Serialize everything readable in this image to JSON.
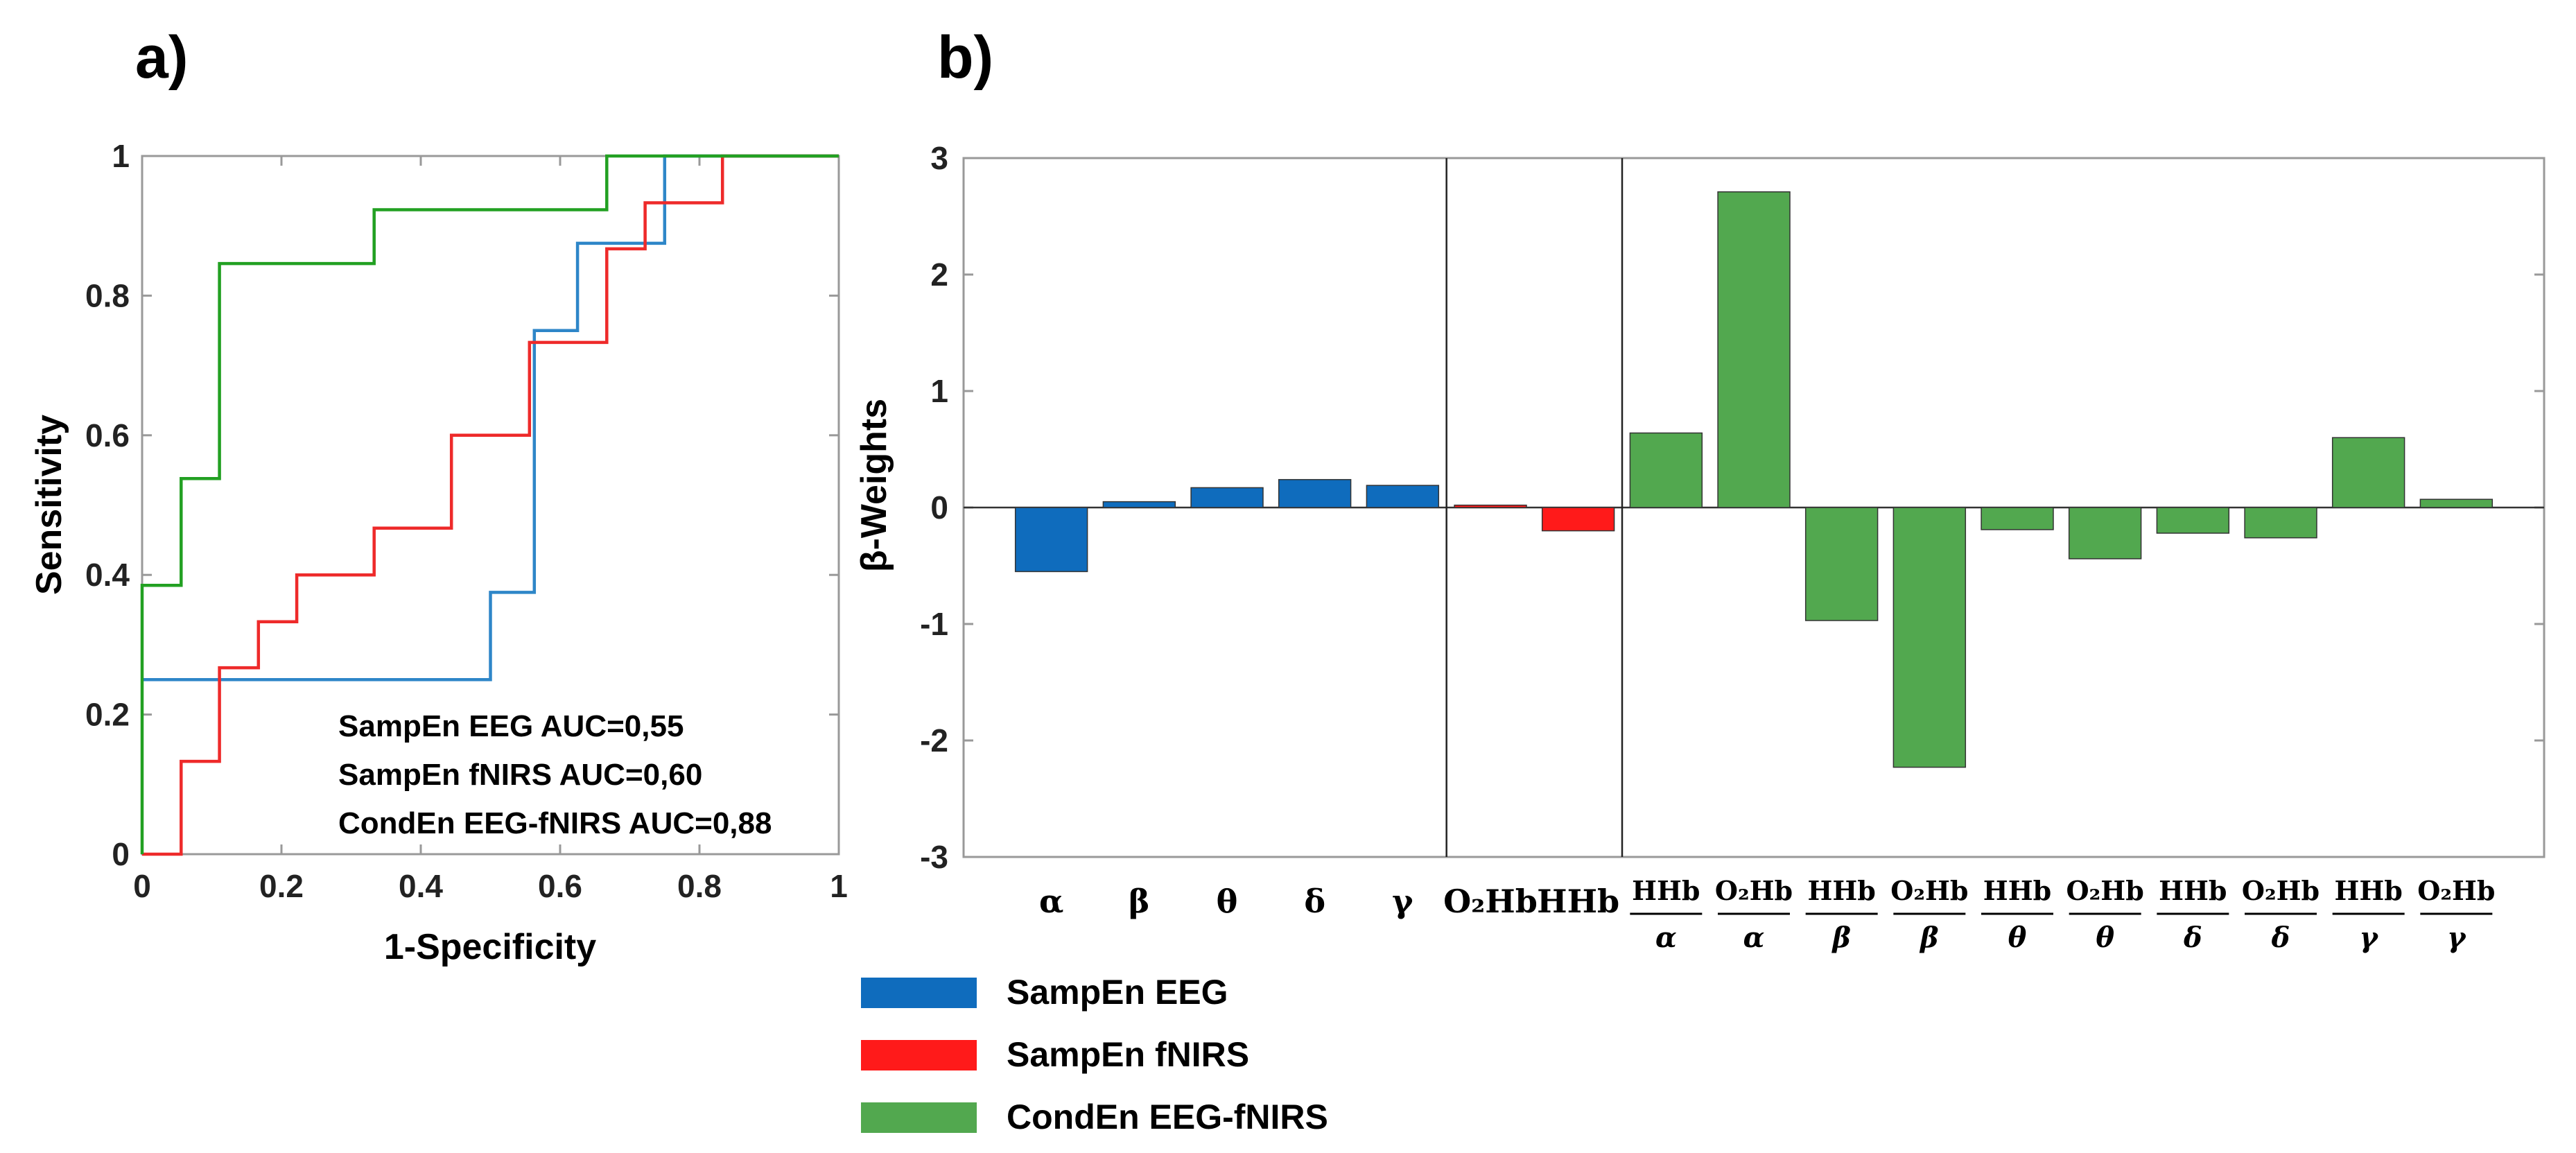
{
  "chart_data": [
    {
      "panel": "a)",
      "type": "line",
      "subtype": "roc-step",
      "xlabel": "1-Specificity",
      "ylabel": "Sensitivity",
      "xlim": [
        0,
        1
      ],
      "ylim": [
        0,
        1
      ],
      "xticks": [
        "0",
        "0.2",
        "0.4",
        "0.6",
        "0.8",
        "1"
      ],
      "yticks": [
        "0",
        "0.2",
        "0.4",
        "0.6",
        "0.8",
        "1"
      ],
      "xtick_values": [
        0,
        0.2,
        0.4,
        0.6,
        0.8,
        1
      ],
      "ytick_values": [
        0,
        0.2,
        0.4,
        0.6,
        0.8,
        1
      ],
      "annotations": [
        "SampEn EEG AUC=0,55",
        "SampEn fNIRS AUC=0,60",
        "CondEn EEG-fNIRS AUC=0,88"
      ],
      "series": [
        {
          "name": "SampEn EEG",
          "color": "#2E86C8",
          "points": [
            [
              0,
              0.25
            ],
            [
              0.5,
              0.25
            ],
            [
              0.5,
              0.375
            ],
            [
              0.563,
              0.375
            ],
            [
              0.563,
              0.75
            ],
            [
              0.625,
              0.75
            ],
            [
              0.625,
              0.875
            ],
            [
              0.75,
              0.875
            ],
            [
              0.75,
              1
            ],
            [
              1,
              1
            ]
          ]
        },
        {
          "name": "SampEn fNIRS",
          "color": "#EE2A2A",
          "points": [
            [
              0,
              0
            ],
            [
              0.056,
              0
            ],
            [
              0.056,
              0.133
            ],
            [
              0.111,
              0.133
            ],
            [
              0.111,
              0.267
            ],
            [
              0.167,
              0.267
            ],
            [
              0.167,
              0.333
            ],
            [
              0.222,
              0.333
            ],
            [
              0.222,
              0.4
            ],
            [
              0.333,
              0.4
            ],
            [
              0.333,
              0.467
            ],
            [
              0.444,
              0.467
            ],
            [
              0.444,
              0.6
            ],
            [
              0.556,
              0.6
            ],
            [
              0.556,
              0.733
            ],
            [
              0.667,
              0.733
            ],
            [
              0.667,
              0.867
            ],
            [
              0.722,
              0.867
            ],
            [
              0.722,
              0.933
            ],
            [
              0.833,
              0.933
            ],
            [
              0.833,
              1
            ],
            [
              1,
              1
            ]
          ]
        },
        {
          "name": "CondEn EEG-fNIRS",
          "color": "#22A022",
          "points": [
            [
              0,
              0
            ],
            [
              0,
              0.385
            ],
            [
              0.056,
              0.385
            ],
            [
              0.056,
              0.538
            ],
            [
              0.111,
              0.538
            ],
            [
              0.111,
              0.846
            ],
            [
              0.333,
              0.846
            ],
            [
              0.333,
              0.923
            ],
            [
              0.667,
              0.923
            ],
            [
              0.667,
              1
            ],
            [
              1,
              1
            ]
          ]
        }
      ]
    },
    {
      "panel": "b)",
      "type": "bar",
      "ylabel": "β-Weights",
      "ylim": [
        -3,
        3
      ],
      "yticks": [
        "-3",
        "-2",
        "-1",
        "0",
        "1",
        "2",
        "3"
      ],
      "ytick_values": [
        -3,
        -2,
        -1,
        0,
        1,
        2,
        3
      ],
      "groups": [
        {
          "name": "SampEn EEG",
          "color": "#0F6CBD",
          "categories": [
            {
              "num": "α"
            },
            {
              "num": "β"
            },
            {
              "num": "θ"
            },
            {
              "num": "δ"
            },
            {
              "num": "γ"
            }
          ],
          "values": [
            -0.55,
            0.05,
            0.17,
            0.24,
            0.19
          ]
        },
        {
          "name": "SampEn fNIRS",
          "color": "#FF1A1A",
          "categories": [
            {
              "num": "O₂Hb"
            },
            {
              "num": "HHb"
            }
          ],
          "values": [
            0.02,
            -0.2
          ]
        },
        {
          "name": "CondEn EEG-fNIRS",
          "color": "#52A84F",
          "categories": [
            {
              "num": "HHb",
              "den": "α"
            },
            {
              "num": "O₂Hb",
              "den": "α"
            },
            {
              "num": "HHb",
              "den": "β"
            },
            {
              "num": "O₂Hb",
              "den": "β"
            },
            {
              "num": "HHb",
              "den": "θ"
            },
            {
              "num": "O₂Hb",
              "den": "θ"
            },
            {
              "num": "HHb",
              "den": "δ"
            },
            {
              "num": "O₂Hb",
              "den": "δ"
            },
            {
              "num": "HHb",
              "den": "γ"
            },
            {
              "num": "O₂Hb",
              "den": "γ"
            }
          ],
          "values": [
            0.64,
            2.71,
            -0.97,
            -2.23,
            -0.19,
            -0.44,
            -0.22,
            -0.26,
            0.6,
            0.07
          ]
        }
      ]
    }
  ],
  "legend": [
    {
      "label": "SampEn EEG",
      "color": "#0F6CBD"
    },
    {
      "label": "SampEn fNIRS",
      "color": "#FF1A1A"
    },
    {
      "label": "CondEn EEG-fNIRS",
      "color": "#52A84F"
    }
  ]
}
